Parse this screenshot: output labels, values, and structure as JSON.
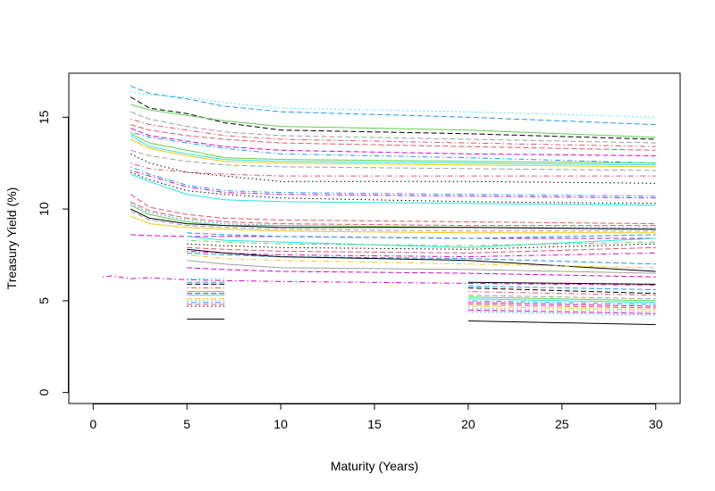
{
  "chart_data": {
    "type": "line",
    "title": "",
    "xlabel": "Maturity (Years)",
    "ylabel": "Treasury Yield (%)",
    "xlim": [
      -1.3,
      31.3
    ],
    "ylim": [
      -0.6,
      17.4
    ],
    "x_ticks": [
      0,
      5,
      10,
      15,
      20,
      25,
      30
    ],
    "y_ticks": [
      0,
      5,
      10,
      15
    ],
    "grid": false,
    "legend": "none",
    "colors": [
      "#000000",
      "#DF536B",
      "#61D04F",
      "#2297E6",
      "#28E2E5",
      "#CD0BBC",
      "#F5C710",
      "#9E9E9E"
    ],
    "series": [
      {
        "x": [
          0.5,
          1,
          2,
          3,
          5,
          7,
          10,
          20,
          30
        ],
        "y": [
          6.3,
          6.35,
          6.2,
          6.25,
          6.15,
          6.1,
          6.05,
          5.95,
          5.85
        ],
        "color": "#CD0BBC",
        "lty": "dotdash"
      },
      {
        "x": [
          2,
          3,
          5,
          7,
          10,
          20,
          30
        ],
        "y": [
          16.7,
          16.3,
          16.0,
          15.6,
          15.3,
          15.0,
          14.6
        ],
        "color": "#2297E6",
        "lty": "dashed"
      },
      {
        "x": [
          2,
          3,
          5,
          7,
          10,
          20,
          30
        ],
        "y": [
          16.4,
          16.2,
          16.1,
          15.8,
          15.5,
          15.3,
          15.0
        ],
        "color": "#28E2E5",
        "lty": "dotted"
      },
      {
        "x": [
          2,
          3,
          5,
          7,
          10,
          20,
          30
        ],
        "y": [
          16.1,
          15.5,
          15.2,
          14.7,
          14.3,
          14.1,
          13.8
        ],
        "color": "#000000",
        "lty": "dashed"
      },
      {
        "x": [
          2,
          3,
          5,
          7,
          10,
          20,
          30
        ],
        "y": [
          15.7,
          15.4,
          15.1,
          14.8,
          14.5,
          14.3,
          13.9
        ],
        "color": "#61D04F",
        "lty": "solid"
      },
      {
        "x": [
          2,
          3,
          5,
          7,
          10,
          20,
          30
        ],
        "y": [
          15.3,
          14.9,
          14.5,
          14.2,
          14.0,
          13.8,
          13.6
        ],
        "color": "#9E9E9E",
        "lty": "dashed"
      },
      {
        "x": [
          2,
          3,
          5,
          7,
          10,
          20,
          30
        ],
        "y": [
          14.9,
          14.6,
          14.3,
          14.0,
          13.8,
          13.6,
          13.4
        ],
        "color": "#DF536B",
        "lty": "dotdash"
      },
      {
        "x": [
          2,
          3,
          5,
          7,
          10,
          20,
          30
        ],
        "y": [
          14.6,
          14.3,
          14.0,
          13.8,
          13.6,
          13.4,
          13.2
        ],
        "color": "#DF536B",
        "lty": "dashed"
      },
      {
        "x": [
          2,
          3,
          5,
          7,
          10,
          20,
          30
        ],
        "y": [
          14.4,
          14.0,
          13.7,
          13.4,
          13.2,
          13.0,
          12.9
        ],
        "color": "#CD0BBC",
        "lty": "dashed"
      },
      {
        "x": [
          2,
          3,
          5,
          7,
          10,
          20,
          30
        ],
        "y": [
          14.2,
          13.9,
          13.6,
          13.3,
          13.0,
          12.8,
          12.5
        ],
        "color": "#2297E6",
        "lty": "dotdash"
      },
      {
        "x": [
          2,
          3,
          5,
          7,
          10,
          20,
          30
        ],
        "y": [
          14.1,
          13.6,
          13.2,
          12.8,
          12.7,
          12.6,
          12.5
        ],
        "color": "#61D04F",
        "lty": "solid"
      },
      {
        "x": [
          2,
          3,
          5,
          7,
          10,
          20,
          30
        ],
        "y": [
          14.0,
          13.4,
          13.0,
          12.7,
          12.6,
          12.5,
          12.4
        ],
        "color": "#28E2E5",
        "lty": "solid"
      },
      {
        "x": [
          2,
          3,
          5,
          7,
          10,
          20,
          30
        ],
        "y": [
          13.8,
          13.3,
          12.9,
          12.6,
          12.5,
          12.4,
          12.3
        ],
        "color": "#F5C710",
        "lty": "solid"
      },
      {
        "x": [
          2,
          3,
          5,
          7,
          10,
          20,
          30
        ],
        "y": [
          13.2,
          12.9,
          12.6,
          12.4,
          12.3,
          12.2,
          12.1
        ],
        "color": "#9E9E9E",
        "lty": "dashed"
      },
      {
        "x": [
          2,
          3,
          5,
          7,
          10,
          20,
          30
        ],
        "y": [
          13.0,
          12.5,
          12.0,
          11.8,
          11.5,
          11.5,
          11.4
        ],
        "color": "#000000",
        "lty": "dotted"
      },
      {
        "x": [
          2,
          3,
          5,
          7,
          10,
          20,
          30
        ],
        "y": [
          12.5,
          12.2,
          12.0,
          11.9,
          11.8,
          11.8,
          11.8
        ],
        "color": "#DF536B",
        "lty": "dotdash"
      },
      {
        "x": [
          2,
          3,
          5,
          7,
          10,
          20,
          30
        ],
        "y": [
          12.3,
          11.9,
          11.3,
          11.0,
          10.9,
          10.8,
          10.7
        ],
        "color": "#2297E6",
        "lty": "dotdash"
      },
      {
        "x": [
          2,
          3,
          5,
          7,
          10,
          20,
          30
        ],
        "y": [
          12.1,
          11.8,
          11.2,
          10.9,
          10.8,
          10.7,
          10.6
        ],
        "color": "#CD0BBC",
        "lty": "dotdash"
      },
      {
        "x": [
          2,
          3,
          5,
          7,
          10,
          20,
          30
        ],
        "y": [
          12.0,
          11.6,
          11.0,
          10.8,
          10.6,
          10.4,
          10.3
        ],
        "color": "#000000",
        "lty": "dotted"
      },
      {
        "x": [
          2,
          3,
          5,
          7,
          10,
          20,
          30
        ],
        "y": [
          11.9,
          11.5,
          10.8,
          10.5,
          10.4,
          10.3,
          10.2
        ],
        "color": "#28E2E5",
        "lty": "solid"
      },
      {
        "x": [
          2,
          3,
          5,
          7,
          10,
          20,
          30
        ],
        "y": [
          10.8,
          10.1,
          9.7,
          9.5,
          9.4,
          9.3,
          9.2
        ],
        "color": "#DF536B",
        "lty": "dashed"
      },
      {
        "x": [
          2,
          3,
          5,
          7,
          10,
          20,
          30
        ],
        "y": [
          10.4,
          9.9,
          9.5,
          9.3,
          9.2,
          9.1,
          9.1
        ],
        "color": "#DF536B",
        "lty": "dashed"
      },
      {
        "x": [
          2,
          3,
          5,
          7,
          10,
          20,
          30
        ],
        "y": [
          10.3,
          9.8,
          9.4,
          9.2,
          9.1,
          9.0,
          9.0
        ],
        "color": "#2297E6",
        "lty": "dotted"
      },
      {
        "x": [
          2,
          3,
          5,
          7,
          10,
          20,
          30
        ],
        "y": [
          10.2,
          9.7,
          9.3,
          9.1,
          9.1,
          9.0,
          8.9
        ],
        "color": "#61D04F",
        "lty": "solid"
      },
      {
        "x": [
          2,
          3,
          5,
          7,
          10,
          20,
          30
        ],
        "y": [
          10.0,
          9.5,
          9.2,
          9.1,
          9.0,
          9.0,
          8.9
        ],
        "color": "#000000",
        "lty": "solid"
      },
      {
        "x": [
          2,
          3,
          5,
          7,
          10,
          20,
          30
        ],
        "y": [
          9.9,
          9.4,
          9.1,
          9.0,
          8.9,
          8.8,
          8.8
        ],
        "color": "#9E9E9E",
        "lty": "dashed"
      },
      {
        "x": [
          2,
          3,
          5,
          7,
          10,
          20,
          30
        ],
        "y": [
          9.6,
          9.2,
          9.0,
          8.9,
          8.8,
          8.7,
          8.7
        ],
        "color": "#F5C710",
        "lty": "solid"
      },
      {
        "x": [
          2,
          3,
          5,
          7,
          10,
          20,
          30
        ],
        "y": [
          8.6,
          8.55,
          8.5,
          8.5,
          8.5,
          8.4,
          8.4
        ],
        "color": "#CD0BBC",
        "lty": "dashed"
      },
      {
        "x": [
          5,
          7,
          10,
          20,
          30
        ],
        "y": [
          8.7,
          8.6,
          8.5,
          8.4,
          8.6
        ],
        "color": "#2297E6",
        "lty": "dashed"
      },
      {
        "x": [
          5,
          7,
          10,
          20,
          30
        ],
        "y": [
          8.5,
          8.3,
          8.2,
          7.9,
          8.4
        ],
        "color": "#28E2E5",
        "lty": "solid"
      },
      {
        "x": [
          5,
          7,
          10,
          20,
          30
        ],
        "y": [
          8.3,
          8.2,
          8.1,
          8.0,
          8.2
        ],
        "color": "#61D04F",
        "lty": "dotdash"
      },
      {
        "x": [
          5,
          7,
          10,
          20,
          30
        ],
        "y": [
          8.1,
          8.0,
          7.9,
          7.8,
          8.1
        ],
        "color": "#000000",
        "lty": "dotted"
      },
      {
        "x": [
          5,
          7,
          10,
          20,
          30
        ],
        "y": [
          7.9,
          7.8,
          7.7,
          7.6,
          7.9
        ],
        "color": "#DF536B",
        "lty": "dashed"
      },
      {
        "x": [
          5,
          7,
          10,
          20,
          30
        ],
        "y": [
          7.7,
          7.6,
          7.5,
          7.4,
          7.6
        ],
        "color": "#CD0BBC",
        "lty": "dotdash"
      },
      {
        "x": [
          5,
          7,
          10,
          20,
          30
        ],
        "y": [
          7.6,
          7.5,
          7.4,
          7.3,
          7.0
        ],
        "color": "#2297E6",
        "lty": "dashed"
      },
      {
        "x": [
          5,
          7,
          10,
          20,
          30
        ],
        "y": [
          7.8,
          7.6,
          7.4,
          7.2,
          6.6
        ],
        "color": "#000000",
        "lty": "solid"
      },
      {
        "x": [
          5,
          7,
          10,
          20,
          30
        ],
        "y": [
          7.5,
          7.3,
          7.2,
          7.0,
          6.8
        ],
        "color": "#F5C710",
        "lty": "dotdash"
      },
      {
        "x": [
          5,
          7,
          10,
          20,
          30
        ],
        "y": [
          7.2,
          7.0,
          6.8,
          6.7,
          6.5
        ],
        "color": "#9E9E9E",
        "lty": "solid"
      },
      {
        "x": [
          5,
          7,
          10,
          20,
          30
        ],
        "y": [
          6.8,
          6.7,
          6.6,
          6.5,
          6.3
        ],
        "color": "#CD0BBC",
        "lty": "dashed"
      },
      {
        "x": [
          5,
          7
        ],
        "y": [
          6.2,
          6.2
        ],
        "color": "#28E2E5",
        "lty": "dotted"
      },
      {
        "x": [
          5,
          7
        ],
        "y": [
          6.0,
          6.0
        ],
        "color": "#2297E6",
        "lty": "dashed"
      },
      {
        "x": [
          5,
          7
        ],
        "y": [
          5.9,
          5.9
        ],
        "color": "#000000",
        "lty": "dashed"
      },
      {
        "x": [
          5,
          7
        ],
        "y": [
          5.7,
          5.7
        ],
        "color": "#DF536B",
        "lty": "dotdash"
      },
      {
        "x": [
          5,
          7
        ],
        "y": [
          5.5,
          5.5
        ],
        "color": "#61D04F",
        "lty": "solid"
      },
      {
        "x": [
          5,
          7
        ],
        "y": [
          5.4,
          5.4
        ],
        "color": "#CD0BBC",
        "lty": "dashed"
      },
      {
        "x": [
          5,
          7
        ],
        "y": [
          5.3,
          5.3
        ],
        "color": "#28E2E5",
        "lty": "solid"
      },
      {
        "x": [
          5,
          7
        ],
        "y": [
          5.1,
          5.1
        ],
        "color": "#F5C710",
        "lty": "dashed"
      },
      {
        "x": [
          5,
          7
        ],
        "y": [
          5.0,
          5.0
        ],
        "color": "#9E9E9E",
        "lty": "dotted"
      },
      {
        "x": [
          5,
          7
        ],
        "y": [
          4.9,
          4.9
        ],
        "color": "#2297E6",
        "lty": "dotdash"
      },
      {
        "x": [
          5,
          7
        ],
        "y": [
          4.8,
          4.8
        ],
        "color": "#DF536B",
        "lty": "dashed"
      },
      {
        "x": [
          5,
          7
        ],
        "y": [
          4.7,
          4.7
        ],
        "color": "#000000",
        "lty": "dotted"
      },
      {
        "x": [
          5,
          7
        ],
        "y": [
          4.0,
          4.0
        ],
        "color": "#000000",
        "lty": "solid"
      },
      {
        "x": [
          20,
          30
        ],
        "y": [
          6.0,
          5.9
        ],
        "color": "#000000",
        "lty": "solid"
      },
      {
        "x": [
          20,
          30
        ],
        "y": [
          5.8,
          5.6
        ],
        "color": "#2297E6",
        "lty": "dashed"
      },
      {
        "x": [
          20,
          30
        ],
        "y": [
          5.7,
          5.4
        ],
        "color": "#000000",
        "lty": "dashed"
      },
      {
        "x": [
          20,
          30
        ],
        "y": [
          5.5,
          5.3
        ],
        "color": "#DF536B",
        "lty": "dotdash"
      },
      {
        "x": [
          20,
          30
        ],
        "y": [
          5.3,
          5.1
        ],
        "color": "#9E9E9E",
        "lty": "dashed"
      },
      {
        "x": [
          20,
          30
        ],
        "y": [
          5.2,
          5.0
        ],
        "color": "#61D04F",
        "lty": "solid"
      },
      {
        "x": [
          20,
          30
        ],
        "y": [
          5.1,
          4.9
        ],
        "color": "#28E2E5",
        "lty": "solid"
      },
      {
        "x": [
          20,
          30
        ],
        "y": [
          5.0,
          4.8
        ],
        "color": "#2297E6",
        "lty": "dotdash"
      },
      {
        "x": [
          20,
          30
        ],
        "y": [
          4.9,
          4.7
        ],
        "color": "#CD0BBC",
        "lty": "dashed"
      },
      {
        "x": [
          20,
          30
        ],
        "y": [
          4.8,
          4.6
        ],
        "color": "#DF536B",
        "lty": "dashed"
      },
      {
        "x": [
          20,
          30
        ],
        "y": [
          4.7,
          4.5
        ],
        "color": "#F5C710",
        "lty": "dotdash"
      },
      {
        "x": [
          20,
          30
        ],
        "y": [
          4.6,
          4.4
        ],
        "color": "#9E9E9E",
        "lty": "dotted"
      },
      {
        "x": [
          20,
          30
        ],
        "y": [
          4.5,
          4.3
        ],
        "color": "#CD0BBC",
        "lty": "dashed"
      },
      {
        "x": [
          20,
          30
        ],
        "y": [
          4.4,
          4.2
        ],
        "color": "#2297E6",
        "lty": "dotted"
      },
      {
        "x": [
          20,
          30
        ],
        "y": [
          3.9,
          3.7
        ],
        "color": "#000000",
        "lty": "solid"
      }
    ]
  }
}
